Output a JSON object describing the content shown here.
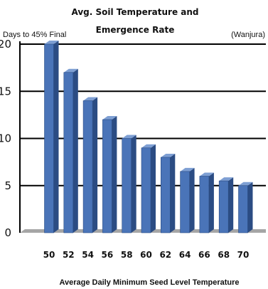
{
  "chart_data": {
    "type": "bar",
    "title": [
      "Avg. Soil Temperature and",
      "Emergence Rate"
    ],
    "ylabel": "Days to 45% Final",
    "source_note": "(Wanjura)",
    "xlabel": "Average Daily Minimum Seed Level Temperature",
    "categories": [
      "50",
      "52",
      "54",
      "56",
      "58",
      "60",
      "62",
      "64",
      "66",
      "68",
      "70"
    ],
    "values": [
      20,
      17,
      14,
      12,
      10,
      9,
      8,
      6.5,
      6,
      5.5,
      5
    ],
    "ylim": [
      0,
      20
    ],
    "yticks": [
      "0",
      "5",
      "10",
      "15",
      "20"
    ],
    "grid": true,
    "colors": {
      "bar_front": "#4a74b8",
      "bar_side": "#2b4c83",
      "bar_top": "#7e9fd3",
      "floor": "#a6a6a6",
      "grid": "#000000"
    }
  }
}
